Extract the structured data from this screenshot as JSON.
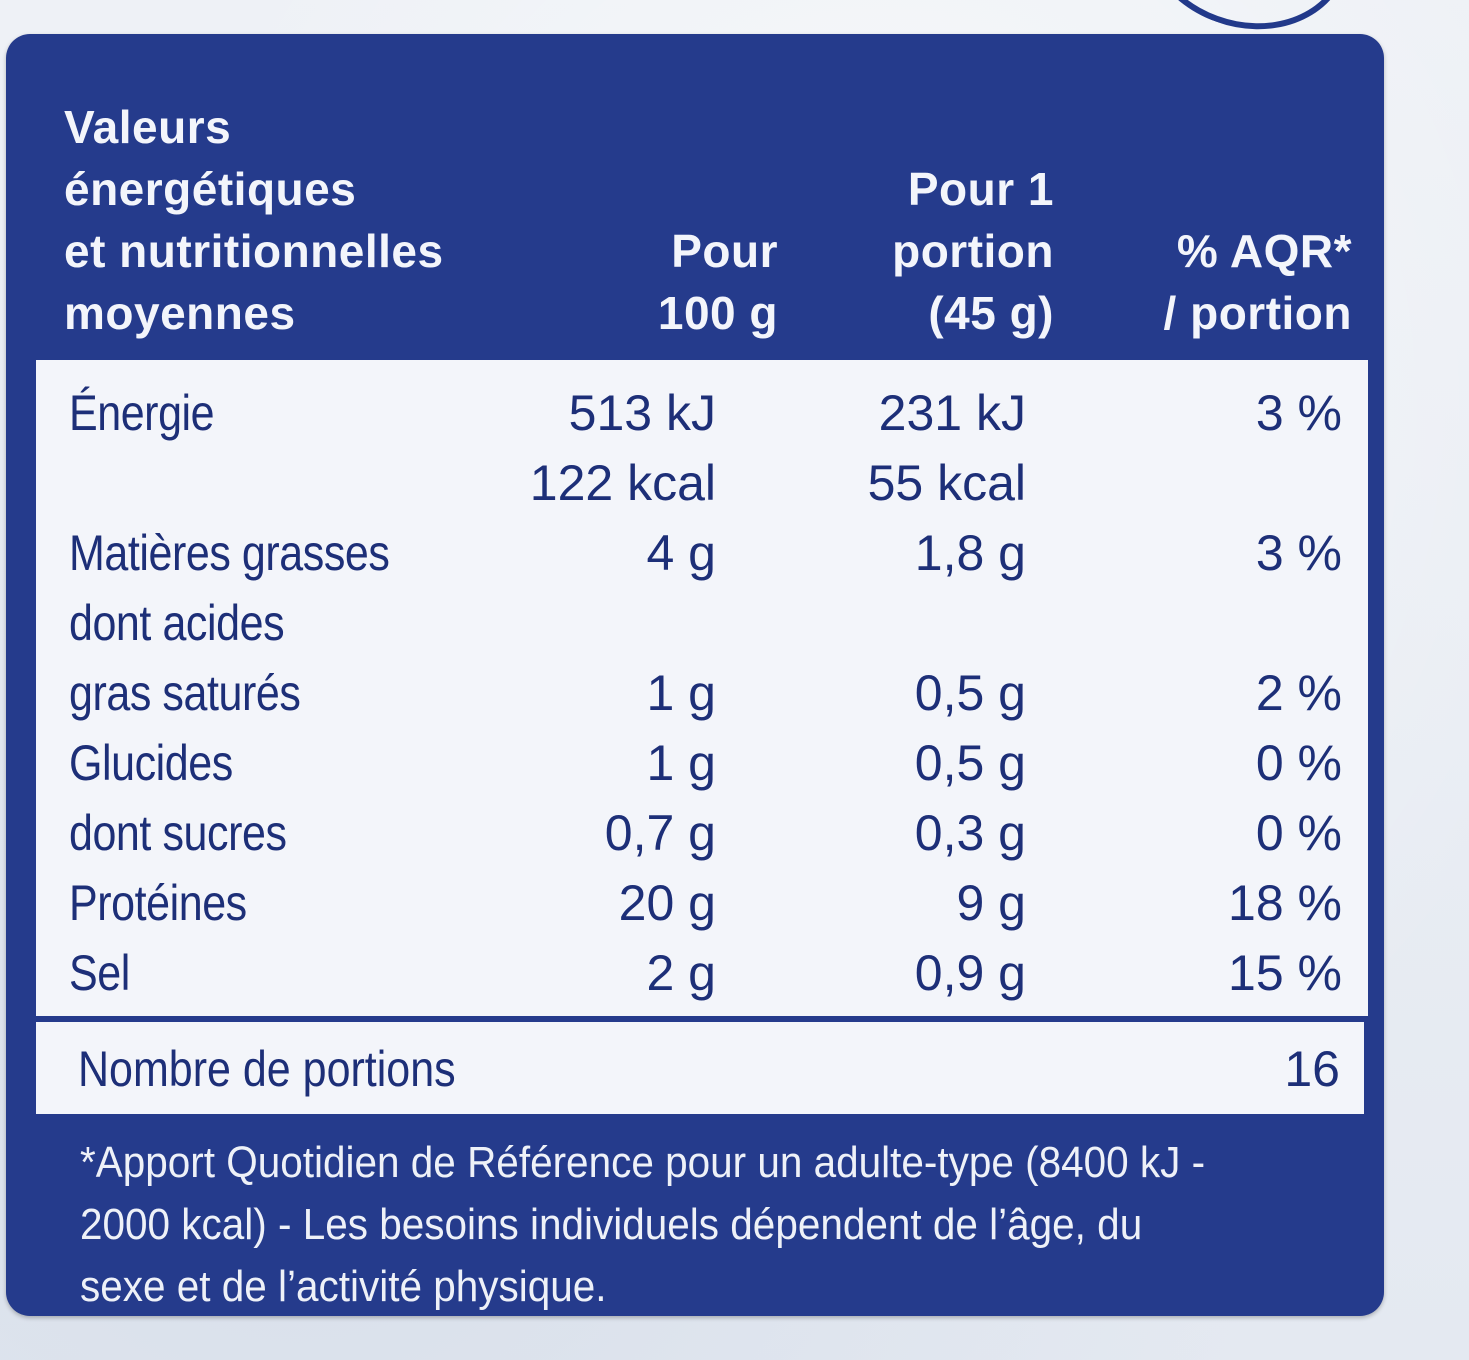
{
  "header": {
    "label_lines": [
      "Valeurs",
      "énergétiques",
      "et nutritionnelles",
      "moyennes"
    ],
    "col1_lines": [
      "Pour",
      "100 g"
    ],
    "col2_lines": [
      "Pour 1",
      "portion",
      "(45 g)"
    ],
    "col3_lines": [
      "% AQR*",
      "/ portion"
    ]
  },
  "rows": [
    {
      "name": "Énergie",
      "v1": "513 kJ",
      "v2": "231 kJ",
      "v3": "3 %"
    },
    {
      "name": "",
      "v1": "122 kcal",
      "v2": "55 kcal",
      "v3": ""
    },
    {
      "name": "Matières grasses",
      "v1": "4 g",
      "v2": "1,8 g",
      "v3": "3 %"
    },
    {
      "name": "dont acides",
      "v1": "",
      "v2": "",
      "v3": ""
    },
    {
      "name": "gras saturés",
      "v1": "1 g",
      "v2": "0,5 g",
      "v3": "2 %"
    },
    {
      "name": "Glucides",
      "v1": "1 g",
      "v2": "0,5 g",
      "v3": "0 %"
    },
    {
      "name": "dont sucres",
      "v1": "0,7 g",
      "v2": "0,3 g",
      "v3": "0 %"
    },
    {
      "name": "Protéines",
      "v1": "20 g",
      "v2": "9 g",
      "v3": "18 %"
    },
    {
      "name": "Sel",
      "v1": "2 g",
      "v2": "0,9 g",
      "v3": "15 %"
    }
  ],
  "portions": {
    "label": "Nombre de portions",
    "value": "16"
  },
  "footnote_lines": [
    "*Apport Quotidien de Référence pour un adulte-type (8400 kJ -",
    "2000 kcal) - Les besoins individuels dépendent de l’âge, du",
    "sexe et de l’activité physique."
  ],
  "colors": {
    "panel": "#253b8c",
    "text_dark": "#1d2f78",
    "text_light": "#f3f5fb",
    "box": "#f3f5fa"
  }
}
